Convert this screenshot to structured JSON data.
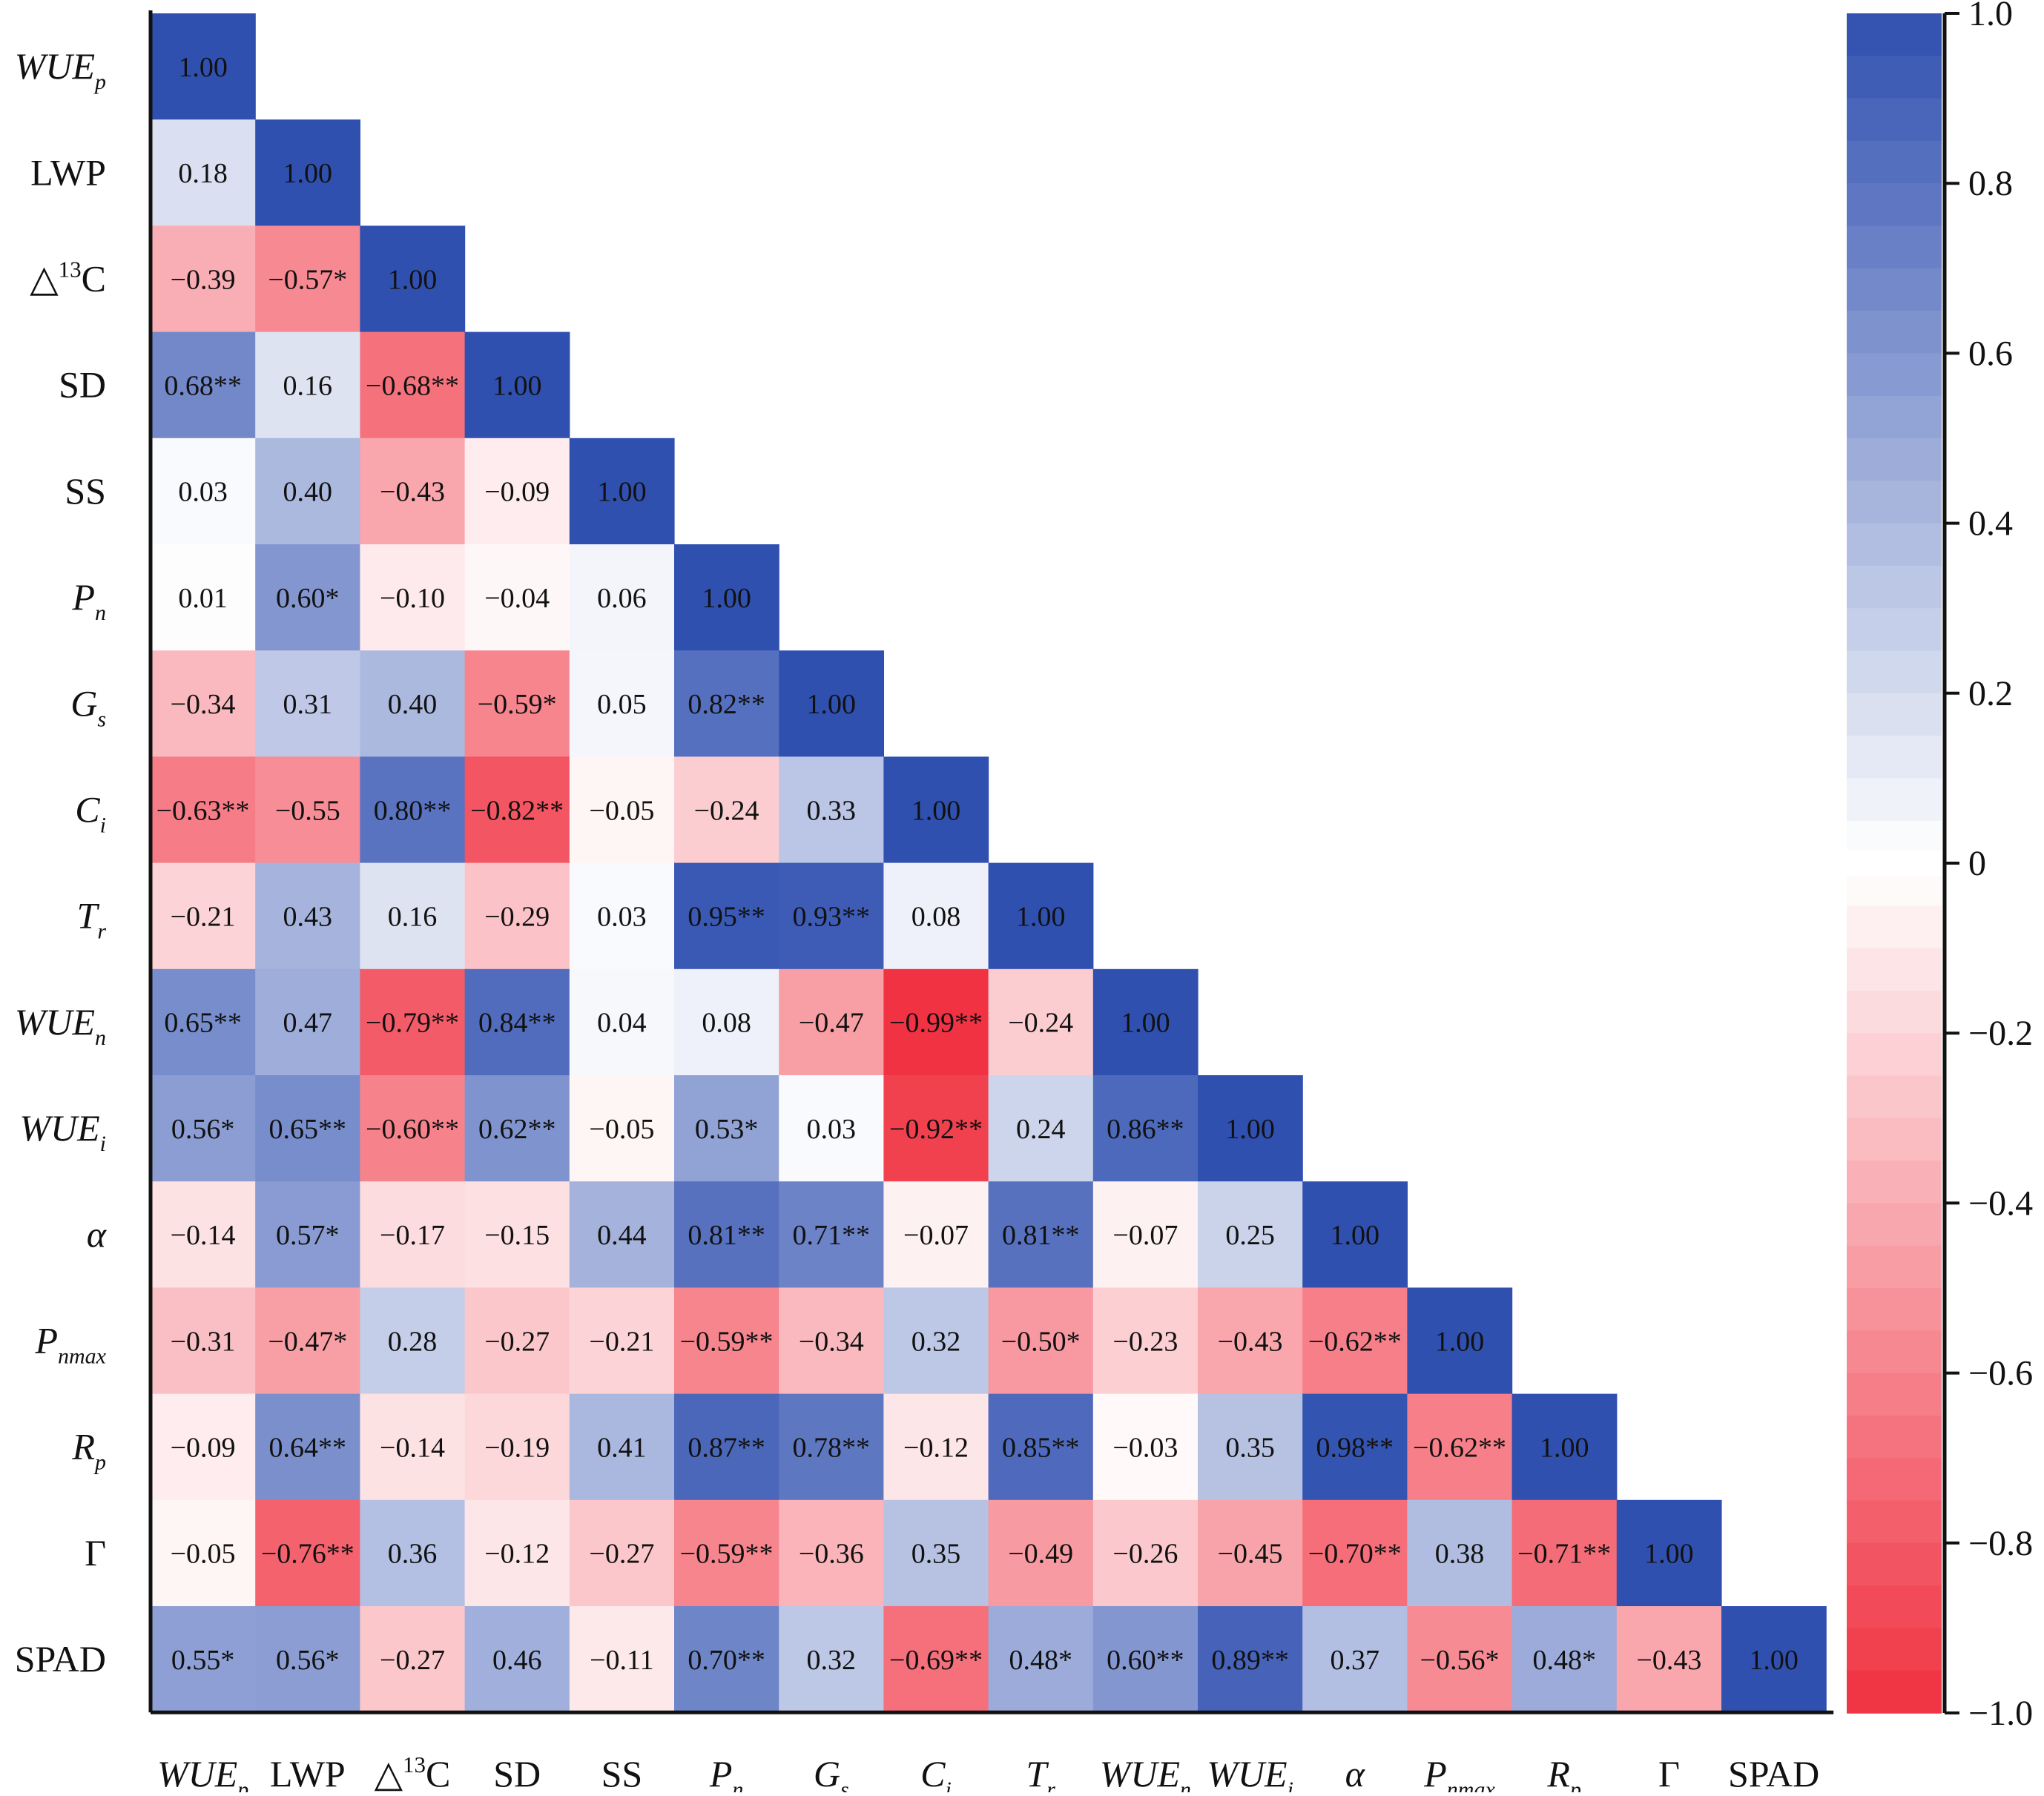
{
  "chart_data": {
    "type": "heatmap",
    "variables": [
      {
        "base": "WUE",
        "sub": "p",
        "italic": true,
        "sup": ""
      },
      {
        "base": "LWP",
        "sub": "",
        "italic": false,
        "sup": ""
      },
      {
        "base": "△",
        "sub": "",
        "italic": false,
        "sup": "13",
        "tail": "C"
      },
      {
        "base": "SD",
        "sub": "",
        "italic": false,
        "sup": ""
      },
      {
        "base": "SS",
        "sub": "",
        "italic": false,
        "sup": ""
      },
      {
        "base": "P",
        "sub": "n",
        "italic": true,
        "sup": ""
      },
      {
        "base": "G",
        "sub": "s",
        "italic": true,
        "sup": ""
      },
      {
        "base": "C",
        "sub": "i",
        "italic": true,
        "sup": ""
      },
      {
        "base": "T",
        "sub": "r",
        "italic": true,
        "sup": ""
      },
      {
        "base": "WUE",
        "sub": "n",
        "italic": true,
        "sup": ""
      },
      {
        "base": "WUE",
        "sub": "i",
        "italic": true,
        "sup": ""
      },
      {
        "base": "α",
        "sub": "",
        "italic": true,
        "sup": ""
      },
      {
        "base": "P",
        "sub": "nmax",
        "italic": true,
        "sup": ""
      },
      {
        "base": "R",
        "sub": "p",
        "italic": true,
        "sup": ""
      },
      {
        "base": "Γ",
        "sub": "",
        "italic": false,
        "sup": ""
      },
      {
        "base": "SPAD",
        "sub": "",
        "italic": false,
        "sup": ""
      }
    ],
    "cells": [
      [
        "1.00"
      ],
      [
        "0.18",
        "1.00"
      ],
      [
        "−0.39",
        "−0.57*",
        "1.00"
      ],
      [
        "0.68**",
        "0.16",
        "−0.68**",
        "1.00"
      ],
      [
        "0.03",
        "0.40",
        "−0.43",
        "−0.09",
        "1.00"
      ],
      [
        "0.01",
        "0.60*",
        "−0.10",
        "−0.04",
        "0.06",
        "1.00"
      ],
      [
        "−0.34",
        "0.31",
        "0.40",
        "−0.59*",
        "0.05",
        "0.82**",
        "1.00"
      ],
      [
        "−0.63**",
        "−0.55",
        "0.80**",
        "−0.82**",
        "−0.05",
        "−0.24",
        "0.33",
        "1.00"
      ],
      [
        "−0.21",
        "0.43",
        "0.16",
        "−0.29",
        "0.03",
        "0.95**",
        "0.93**",
        "0.08",
        "1.00"
      ],
      [
        "0.65**",
        "0.47",
        "−0.79**",
        "0.84**",
        "0.04",
        "0.08",
        "−0.47",
        "−0.99**",
        "−0.24",
        "1.00"
      ],
      [
        "0.56*",
        "0.65**",
        "−0.60**",
        "0.62**",
        "−0.05",
        "0.53*",
        "0.03",
        "−0.92**",
        "0.24",
        "0.86**",
        "1.00"
      ],
      [
        "−0.14",
        "0.57*",
        "−0.17",
        "−0.15",
        "0.44",
        "0.81**",
        "0.71**",
        "−0.07",
        "0.81**",
        "−0.07",
        "0.25",
        "1.00"
      ],
      [
        "−0.31",
        "−0.47*",
        "0.28",
        "−0.27",
        "−0.21",
        "−0.59**",
        "−0.34",
        "0.32",
        "−0.50*",
        "−0.23",
        "−0.43",
        "−0.62**",
        "1.00"
      ],
      [
        "−0.09",
        "0.64**",
        "−0.14",
        "−0.19",
        "0.41",
        "0.87**",
        "0.78**",
        "−0.12",
        "0.85**",
        "−0.03",
        "0.35",
        "0.98**",
        "−0.62**",
        "1.00"
      ],
      [
        "−0.05",
        "−0.76**",
        "0.36",
        "−0.12",
        "−0.27",
        "−0.59**",
        "−0.36",
        "0.35",
        "−0.49",
        "−0.26",
        "−0.45",
        "−0.70**",
        "0.38",
        "−0.71**",
        "1.00"
      ],
      [
        "0.55*",
        "0.56*",
        "−0.27",
        "0.46",
        "−0.11",
        "0.70**",
        "0.32",
        "−0.69**",
        "0.48*",
        "0.60**",
        "0.89**",
        "0.37",
        "−0.56*",
        "0.48*",
        "−0.43",
        "1.00"
      ]
    ],
    "colorbar": {
      "range": [
        -1.0,
        1.0
      ],
      "ticks": [
        "1.0",
        "0.8",
        "0.6",
        "0.4",
        "0.2",
        "0",
        "−0.2",
        "−0.4",
        "−0.6",
        "−0.8",
        "−1.0"
      ],
      "tick_values": [
        1.0,
        0.8,
        0.6,
        0.4,
        0.2,
        0,
        -0.2,
        -0.4,
        -0.6,
        -0.8,
        -1.0
      ]
    },
    "colors": {
      "positive_max": "#3050b0",
      "negative_max": "#f03040",
      "zero": "#ffffff"
    }
  }
}
